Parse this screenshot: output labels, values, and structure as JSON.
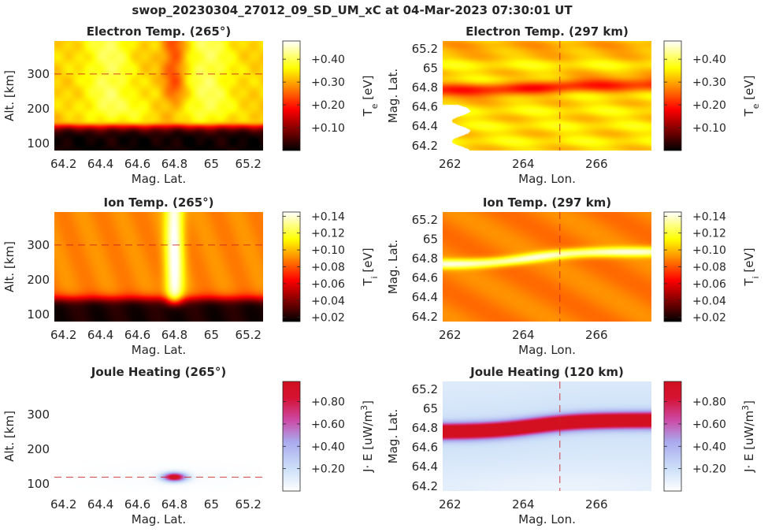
{
  "figure_title": "swop_20230304_27012_09_SD_UM_xC at 04-Mar-2023 07:30:01 UT",
  "chart_data": [
    {
      "type": "heatmap",
      "title": "Electron Temp. (265°)",
      "xlabel": "Mag. Lat.",
      "ylabel": "Alt. [km]",
      "xlim": [
        64.15,
        65.28
      ],
      "ylim": [
        80,
        395
      ],
      "xticks": [
        "64.2",
        "64.4",
        "64.6",
        "64.8",
        "65",
        "65.2"
      ],
      "xtick_values": [
        64.2,
        64.4,
        64.6,
        64.8,
        65.0,
        65.2
      ],
      "yticks": [
        "100",
        "200",
        "300"
      ],
      "ytick_values": [
        100,
        200,
        300
      ],
      "reference_line": {
        "axis": "y",
        "value": 300
      },
      "colormap": "hot",
      "colorbar": {
        "label_main": "T",
        "label_sub": "e",
        "label_unit": " [eV]",
        "ticks": [
          "+0.10",
          "+0.20",
          "+0.30",
          "+0.40"
        ],
        "tick_values": [
          0.1,
          0.2,
          0.3,
          0.4
        ],
        "range": [
          0.0,
          0.48
        ]
      },
      "field_description": "low near 0 below ~150 km; ~0.33 eV above 165 km with bright patches near 64.45 and 64.95; darker notch near 64.8 above 200 km"
    },
    {
      "type": "heatmap",
      "title": "Electron Temp. (297 km)",
      "xlabel": "Mag. Lon.",
      "ylabel": "Mag. Lat.",
      "xlim": [
        261.8,
        267.5
      ],
      "ylim": [
        64.15,
        65.28
      ],
      "xticks": [
        "262",
        "264",
        "266"
      ],
      "xtick_values": [
        262,
        264,
        266
      ],
      "yticks": [
        "64.2",
        "64.4",
        "64.6",
        "64.8",
        "65",
        "65.2"
      ],
      "ytick_values": [
        64.2,
        64.4,
        64.6,
        64.8,
        65.0,
        65.2
      ],
      "reference_line": {
        "axis": "x",
        "value": 265
      },
      "colormap": "hot",
      "colorbar": {
        "label_main": "T",
        "label_sub": "e",
        "label_unit": " [eV]",
        "ticks": [
          "+0.10",
          "+0.20",
          "+0.30",
          "+0.40"
        ],
        "tick_values": [
          0.1,
          0.2,
          0.3,
          0.4
        ],
        "range": [
          0.0,
          0.48
        ]
      },
      "field_description": "~0.33 eV background; darker band near 64.72-64.88 lat across longitudes; white (no data) region at lon < 262.4 for lat < 64.6"
    },
    {
      "type": "heatmap",
      "title": "Ion Temp. (265°)",
      "xlabel": "Mag. Lat.",
      "ylabel": "Alt. [km]",
      "xlim": [
        64.15,
        65.28
      ],
      "ylim": [
        80,
        395
      ],
      "xticks": [
        "64.2",
        "64.4",
        "64.6",
        "64.8",
        "65",
        "65.2"
      ],
      "xtick_values": [
        64.2,
        64.4,
        64.6,
        64.8,
        65.0,
        65.2
      ],
      "yticks": [
        "100",
        "200",
        "300"
      ],
      "ytick_values": [
        100,
        200,
        300
      ],
      "reference_line": {
        "axis": "y",
        "value": 300
      },
      "colormap": "hot",
      "colorbar": {
        "label_main": "T",
        "label_sub": "i",
        "label_unit": " [eV]",
        "ticks": [
          "+0.02",
          "+0.04",
          "+0.06",
          "+0.08",
          "+0.10",
          "+0.12",
          "+0.14"
        ],
        "tick_values": [
          0.02,
          0.04,
          0.06,
          0.08,
          0.1,
          0.12,
          0.14
        ],
        "range": [
          0.015,
          0.145
        ]
      },
      "field_description": "~0.09 eV above 150 km; bright column (~0.14 eV) centered at 64.8 lat from 130 km upward; low near 0.02 below 140 km"
    },
    {
      "type": "heatmap",
      "title": "Ion Temp. (297 km)",
      "xlabel": "Mag. Lon.",
      "ylabel": "Mag. Lat.",
      "xlim": [
        261.8,
        267.5
      ],
      "ylim": [
        64.15,
        65.28
      ],
      "xticks": [
        "262",
        "264",
        "266"
      ],
      "xtick_values": [
        262,
        264,
        266
      ],
      "yticks": [
        "64.2",
        "64.4",
        "64.6",
        "64.8",
        "65",
        "65.2"
      ],
      "ytick_values": [
        64.2,
        64.4,
        64.6,
        64.8,
        65.0,
        65.2
      ],
      "reference_line": {
        "axis": "x",
        "value": 265
      },
      "colormap": "hot",
      "colorbar": {
        "label_main": "T",
        "label_sub": "i",
        "label_unit": " [eV]",
        "ticks": [
          "+0.02",
          "+0.04",
          "+0.06",
          "+0.08",
          "+0.10",
          "+0.12",
          "+0.14"
        ],
        "tick_values": [
          0.02,
          0.04,
          0.06,
          0.08,
          0.1,
          0.12,
          0.14
        ],
        "range": [
          0.015,
          0.145
        ]
      },
      "field_description": "~0.09 eV background; bright band rising from 64.74 lat at lon 262 to 64.87 at lon 267.5"
    },
    {
      "type": "heatmap",
      "title": "Joule Heating (265°)",
      "xlabel": "Mag. Lat.",
      "ylabel": "Alt. [km]",
      "xlim": [
        64.15,
        65.28
      ],
      "ylim": [
        80,
        395
      ],
      "xticks": [
        "64.2",
        "64.4",
        "64.6",
        "64.8",
        "65",
        "65.2"
      ],
      "xtick_values": [
        64.2,
        64.4,
        64.6,
        64.8,
        65.0,
        65.2
      ],
      "yticks": [
        "100",
        "200",
        "300"
      ],
      "ytick_values": [
        100,
        200,
        300
      ],
      "reference_line": {
        "axis": "y",
        "value": 120
      },
      "colormap": "white-blue-red",
      "colorbar": {
        "label_main": "J· E [uW/m",
        "label_sup": "3",
        "label_end": "]",
        "ticks": [
          "+0.20",
          "+0.40",
          "+0.60",
          "+0.80"
        ],
        "tick_values": [
          0.2,
          0.4,
          0.6,
          0.8
        ],
        "range": [
          0.0,
          0.98
        ]
      },
      "field_description": "near zero everywhere except a compact peak (~0.98) at 64.8 lat, 120 km"
    },
    {
      "type": "heatmap",
      "title": "Joule Heating (120 km)",
      "xlabel": "Mag. Lon.",
      "ylabel": "Mag. Lat.",
      "xlim": [
        261.8,
        267.5
      ],
      "ylim": [
        64.15,
        65.28
      ],
      "xticks": [
        "262",
        "264",
        "266"
      ],
      "xtick_values": [
        262,
        264,
        266
      ],
      "yticks": [
        "64.2",
        "64.4",
        "64.6",
        "64.8",
        "65",
        "65.2"
      ],
      "ytick_values": [
        64.2,
        64.4,
        64.6,
        64.8,
        65.0,
        65.2
      ],
      "reference_line": {
        "axis": "x",
        "value": 265
      },
      "colormap": "white-blue-red",
      "colorbar": {
        "label_main": "J· E [uW/m",
        "label_sup": "3",
        "label_end": "]",
        "ticks": [
          "+0.20",
          "+0.40",
          "+0.60",
          "+0.80"
        ],
        "tick_values": [
          0.2,
          0.4,
          0.6,
          0.8
        ],
        "range": [
          0.0,
          0.98
        ]
      },
      "field_description": "light blue background; saturated red band rising from 64.77 lat at lon 262 to 64.88 at lon 267.5"
    }
  ]
}
